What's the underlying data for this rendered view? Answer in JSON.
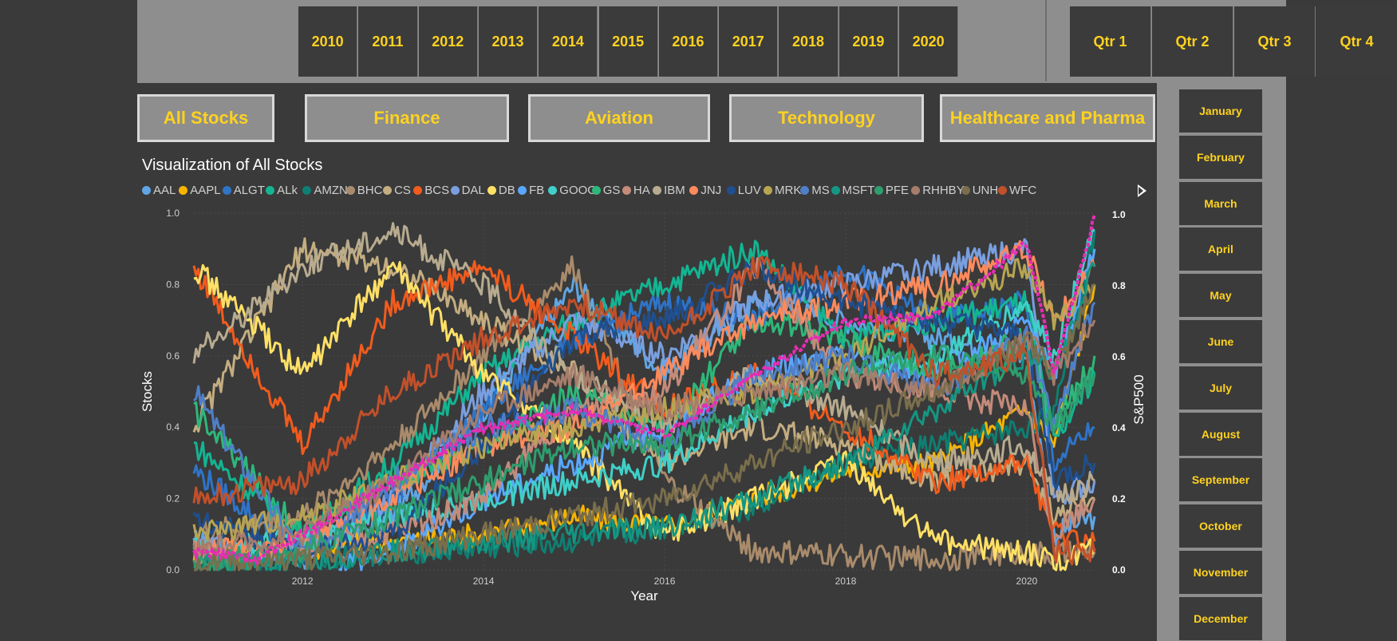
{
  "years": [
    "2010",
    "2011",
    "2012",
    "2013",
    "2014",
    "2015",
    "2016",
    "2017",
    "2018",
    "2019",
    "2020"
  ],
  "quarters": [
    "Qtr 1",
    "Qtr 2",
    "Qtr 3",
    "Qtr 4"
  ],
  "months": [
    "January",
    "February",
    "March",
    "April",
    "May",
    "June",
    "July",
    "August",
    "September",
    "October",
    "November",
    "December"
  ],
  "categories": [
    "All Stocks",
    "Finance",
    "Aviation",
    "Technology",
    "Healthcare and Pharma"
  ],
  "chart_data": {
    "type": "line",
    "title": "Visualization of All Stocks",
    "xlabel": "Year",
    "ylabel": "Stocks",
    "y2label": "S&P500",
    "xlim": [
      2010.8,
      2020.75
    ],
    "ylim": [
      0,
      1.0
    ],
    "y2lim": [
      0,
      1.0
    ],
    "x_ticks": [
      "2012",
      "2014",
      "2016",
      "2018",
      "2020"
    ],
    "x_tick_values": [
      2012,
      2014,
      2016,
      2018,
      2020
    ],
    "y_ticks": [
      "0.0",
      "0.2",
      "0.4",
      "0.6",
      "0.8",
      "1.0"
    ],
    "y2_ticks": [
      "0.0",
      "0.2",
      "0.4",
      "0.6",
      "0.8",
      "1.0"
    ],
    "legend_position": "top",
    "grid": true,
    "series": [
      {
        "name": "AAL",
        "color": "#5fa6e6",
        "x": [
          2010.8,
          2012,
          2013,
          2014,
          2015,
          2016,
          2017,
          2018,
          2019,
          2020,
          2020.3,
          2020.75
        ],
        "y": [
          0.08,
          0.03,
          0.15,
          0.45,
          0.8,
          0.55,
          0.75,
          0.7,
          0.65,
          0.6,
          0.1,
          0.15
        ]
      },
      {
        "name": "AAPL",
        "color": "#f7b500",
        "x": [
          2010.8,
          2012,
          2013,
          2014,
          2015,
          2016,
          2017,
          2018,
          2019,
          2020,
          2020.3,
          2020.75
        ],
        "y": [
          0.05,
          0.06,
          0.08,
          0.1,
          0.15,
          0.12,
          0.2,
          0.28,
          0.3,
          0.45,
          0.35,
          0.8
        ]
      },
      {
        "name": "ALGT",
        "color": "#2e74c9",
        "x": [
          2010.8,
          2012,
          2013,
          2014,
          2015,
          2016,
          2017,
          2018,
          2019,
          2020,
          2020.3,
          2020.75
        ],
        "y": [
          0.28,
          0.05,
          0.2,
          0.45,
          0.65,
          0.75,
          0.7,
          0.85,
          0.7,
          0.75,
          0.3,
          0.4
        ]
      },
      {
        "name": "ALk",
        "color": "#13b592",
        "x": [
          2010.8,
          2012,
          2013,
          2014,
          2015,
          2016,
          2017,
          2018,
          2019,
          2020,
          2020.3,
          2020.75
        ],
        "y": [
          0.35,
          0.1,
          0.3,
          0.55,
          0.7,
          0.8,
          0.9,
          0.65,
          0.7,
          0.75,
          0.35,
          0.55
        ]
      },
      {
        "name": "AMZN",
        "color": "#0e7f72",
        "x": [
          2010.8,
          2012,
          2013,
          2014,
          2015,
          2016,
          2017,
          2018,
          2019,
          2020,
          2020.3,
          2020.75
        ],
        "y": [
          0.03,
          0.03,
          0.05,
          0.06,
          0.08,
          0.12,
          0.18,
          0.3,
          0.35,
          0.4,
          0.45,
          0.95
        ]
      },
      {
        "name": "BHC",
        "color": "#a98b6b",
        "x": [
          2010.8,
          2012,
          2013,
          2014,
          2015,
          2016,
          2017,
          2018,
          2019,
          2020,
          2020.3,
          2020.75
        ],
        "y": [
          0.1,
          0.15,
          0.35,
          0.6,
          0.85,
          0.25,
          0.05,
          0.04,
          0.03,
          0.05,
          0.04,
          0.05
        ]
      },
      {
        "name": "CS",
        "color": "#c4ad80",
        "x": [
          2010.8,
          2012,
          2013,
          2014,
          2015,
          2016,
          2017,
          2018,
          2019,
          2020,
          2020.3,
          2020.75
        ],
        "y": [
          0.4,
          0.9,
          0.85,
          0.7,
          0.55,
          0.3,
          0.4,
          0.35,
          0.25,
          0.3,
          0.15,
          0.2
        ]
      },
      {
        "name": "BCS",
        "color": "#f25b1d",
        "x": [
          2010.8,
          2012,
          2013,
          2014,
          2015,
          2016,
          2017,
          2018,
          2019,
          2020,
          2020.3,
          2020.75
        ],
        "y": [
          0.85,
          0.35,
          0.75,
          0.85,
          0.65,
          0.45,
          0.55,
          0.4,
          0.25,
          0.3,
          0.1,
          0.08
        ]
      },
      {
        "name": "DAL",
        "color": "#7a9fe0",
        "x": [
          2010.8,
          2012,
          2013,
          2014,
          2015,
          2016,
          2017,
          2018,
          2019,
          2020,
          2020.3,
          2020.75
        ],
        "y": [
          0.07,
          0.05,
          0.2,
          0.5,
          0.7,
          0.6,
          0.75,
          0.8,
          0.85,
          0.9,
          0.2,
          0.25
        ]
      },
      {
        "name": "DB",
        "color": "#ffe066",
        "x": [
          2010.8,
          2012,
          2013,
          2014,
          2015,
          2016,
          2017,
          2018,
          2019,
          2020,
          2020.3,
          2020.75
        ],
        "y": [
          0.85,
          0.55,
          0.85,
          0.55,
          0.35,
          0.1,
          0.2,
          0.3,
          0.08,
          0.05,
          0.02,
          0.06
        ]
      },
      {
        "name": "FB",
        "color": "#59a7ff",
        "x": [
          2012.4,
          2013,
          2014,
          2015,
          2016,
          2017,
          2018,
          2019,
          2020,
          2020.3,
          2020.75
        ],
        "y": [
          0.02,
          0.05,
          0.2,
          0.3,
          0.4,
          0.55,
          0.6,
          0.55,
          0.7,
          0.55,
          0.9
        ]
      },
      {
        "name": "GOOG",
        "color": "#3fd0c9",
        "x": [
          2010.8,
          2012,
          2013,
          2014,
          2015,
          2016,
          2017,
          2018,
          2019,
          2020,
          2020.3,
          2020.75
        ],
        "y": [
          0.06,
          0.08,
          0.15,
          0.2,
          0.25,
          0.3,
          0.45,
          0.55,
          0.6,
          0.75,
          0.6,
          0.95
        ]
      },
      {
        "name": "GS",
        "color": "#2db87a",
        "x": [
          2010.8,
          2012,
          2013,
          2014,
          2015,
          2016,
          2017,
          2018,
          2019,
          2020,
          2020.3,
          2020.75
        ],
        "y": [
          0.45,
          0.1,
          0.25,
          0.35,
          0.5,
          0.4,
          0.7,
          0.65,
          0.55,
          0.65,
          0.4,
          0.6
        ]
      },
      {
        "name": "HA",
        "color": "#c48b7a",
        "x": [
          2010.8,
          2012,
          2013,
          2014,
          2015,
          2016,
          2017,
          2018,
          2019,
          2020,
          2020.3,
          2020.75
        ],
        "y": [
          0.05,
          0.05,
          0.1,
          0.2,
          0.45,
          0.5,
          0.85,
          0.55,
          0.5,
          0.45,
          0.1,
          0.2
        ]
      },
      {
        "name": "IBM",
        "color": "#b8ab8f",
        "x": [
          2010.8,
          2012,
          2013,
          2014,
          2015,
          2016,
          2017,
          2018,
          2019,
          2020,
          2020.3,
          2020.75
        ],
        "y": [
          0.6,
          0.85,
          0.95,
          0.8,
          0.55,
          0.4,
          0.55,
          0.45,
          0.3,
          0.35,
          0.2,
          0.25
        ]
      },
      {
        "name": "JNJ",
        "color": "#ff8a5c",
        "x": [
          2010.8,
          2012,
          2013,
          2014,
          2015,
          2016,
          2017,
          2018,
          2019,
          2020,
          2020.3,
          2020.75
        ],
        "y": [
          0.05,
          0.08,
          0.2,
          0.35,
          0.4,
          0.55,
          0.7,
          0.75,
          0.8,
          0.9,
          0.7,
          0.85
        ]
      },
      {
        "name": "LUV",
        "color": "#1f4f8f",
        "x": [
          2010.8,
          2012,
          2013,
          2014,
          2015,
          2016,
          2017,
          2018,
          2019,
          2020,
          2020.3,
          2020.75
        ],
        "y": [
          0.15,
          0.05,
          0.1,
          0.35,
          0.65,
          0.7,
          0.85,
          0.75,
          0.7,
          0.65,
          0.25,
          0.3
        ]
      },
      {
        "name": "MRK",
        "color": "#b8a552",
        "x": [
          2010.8,
          2012,
          2013,
          2014,
          2015,
          2016,
          2017,
          2018,
          2019,
          2020,
          2020.3,
          2020.75
        ],
        "y": [
          0.1,
          0.15,
          0.25,
          0.35,
          0.4,
          0.45,
          0.5,
          0.6,
          0.75,
          0.85,
          0.7,
          0.8
        ]
      },
      {
        "name": "MS",
        "color": "#4f7fc7",
        "x": [
          2010.8,
          2012,
          2013,
          2014,
          2015,
          2016,
          2017,
          2018,
          2019,
          2020,
          2020.3,
          2020.75
        ],
        "y": [
          0.5,
          0.05,
          0.25,
          0.4,
          0.45,
          0.35,
          0.55,
          0.6,
          0.5,
          0.65,
          0.4,
          0.75
        ]
      },
      {
        "name": "MSFT",
        "color": "#149683",
        "x": [
          2010.8,
          2012,
          2013,
          2014,
          2015,
          2016,
          2017,
          2018,
          2019,
          2020,
          2020.3,
          2020.75
        ],
        "y": [
          0.02,
          0.02,
          0.05,
          0.08,
          0.1,
          0.12,
          0.2,
          0.3,
          0.45,
          0.6,
          0.55,
          0.85
        ]
      },
      {
        "name": "PFE",
        "color": "#2e9e6e",
        "x": [
          2010.8,
          2012,
          2013,
          2014,
          2015,
          2016,
          2017,
          2018,
          2019,
          2020,
          2020.3,
          2020.75
        ],
        "y": [
          0.02,
          0.05,
          0.15,
          0.25,
          0.35,
          0.35,
          0.45,
          0.55,
          0.6,
          0.55,
          0.4,
          0.55
        ]
      },
      {
        "name": "RHHBY",
        "color": "#a67d6b",
        "x": [
          2010.8,
          2012,
          2013,
          2014,
          2015,
          2016,
          2017,
          2018,
          2019,
          2020,
          2020.3,
          2020.75
        ],
        "y": [
          0.05,
          0.1,
          0.25,
          0.45,
          0.55,
          0.45,
          0.5,
          0.55,
          0.5,
          0.65,
          0.55,
          0.7
        ]
      },
      {
        "name": "UNH",
        "color": "#7a6e4c",
        "x": [
          2010.8,
          2012,
          2013,
          2014,
          2015,
          2016,
          2017,
          2018,
          2019,
          2020,
          2020.3,
          2020.75
        ],
        "y": [
          0.02,
          0.03,
          0.05,
          0.1,
          0.15,
          0.2,
          0.3,
          0.4,
          0.5,
          0.65,
          0.55,
          0.8
        ]
      },
      {
        "name": "WFC",
        "color": "#c2502a",
        "x": [
          2010.8,
          2012,
          2013,
          2014,
          2015,
          2016,
          2017,
          2018,
          2019,
          2020,
          2020.3,
          2020.75
        ],
        "y": [
          0.2,
          0.25,
          0.5,
          0.65,
          0.75,
          0.65,
          0.85,
          0.8,
          0.55,
          0.6,
          0.05,
          0.05
        ]
      }
    ],
    "sp500": {
      "color": "#e62db3",
      "x": [
        2010.8,
        2011.5,
        2012,
        2013,
        2014,
        2015,
        2016,
        2017,
        2018,
        2019,
        2020,
        2020.2,
        2020.3,
        2020.75
      ],
      "y": [
        0.05,
        0.03,
        0.1,
        0.25,
        0.4,
        0.45,
        0.38,
        0.55,
        0.7,
        0.72,
        0.92,
        0.7,
        0.55,
        1.0
      ]
    }
  }
}
